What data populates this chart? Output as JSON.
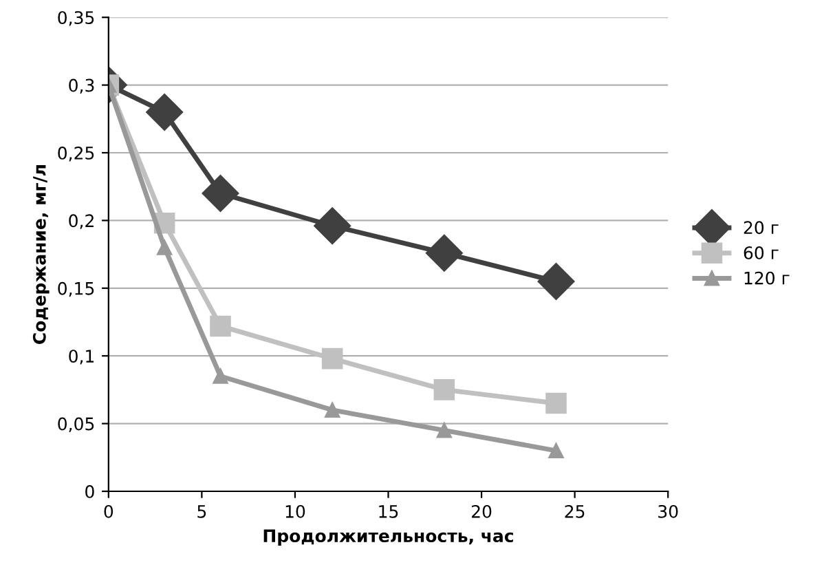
{
  "chart_data": {
    "type": "line",
    "xlabel": "Продолжительность, час",
    "ylabel": "Содержание, мг/л",
    "x": [
      0,
      3,
      6,
      12,
      18,
      24
    ],
    "series": [
      {
        "name": "20 г",
        "color": "#404040",
        "marker": "diamond",
        "values": [
          0.3,
          0.28,
          0.22,
          0.196,
          0.176,
          0.155
        ]
      },
      {
        "name": "60 г",
        "color": "#c0c0c0",
        "marker": "square",
        "values": [
          0.3,
          0.198,
          0.122,
          0.098,
          0.075,
          0.065
        ]
      },
      {
        "name": "120 г",
        "color": "#999999",
        "marker": "triangle",
        "values": [
          0.3,
          0.18,
          0.085,
          0.06,
          0.045,
          0.03
        ]
      }
    ],
    "xlim": [
      0,
      30
    ],
    "xticks": [
      0,
      5,
      10,
      15,
      20,
      25,
      30
    ],
    "ylim": [
      0,
      0.35
    ],
    "yticks": [
      {
        "value": 0,
        "label": "0"
      },
      {
        "value": 0.05,
        "label": "0,05"
      },
      {
        "value": 0.1,
        "label": "0,1"
      },
      {
        "value": 0.15,
        "label": "0,15"
      },
      {
        "value": 0.2,
        "label": "0,2"
      },
      {
        "value": 0.25,
        "label": "0,25"
      },
      {
        "value": 0.3,
        "label": "0,3"
      },
      {
        "value": 0.35,
        "label": "0,35"
      }
    ],
    "grid": "y",
    "legend": "right"
  }
}
